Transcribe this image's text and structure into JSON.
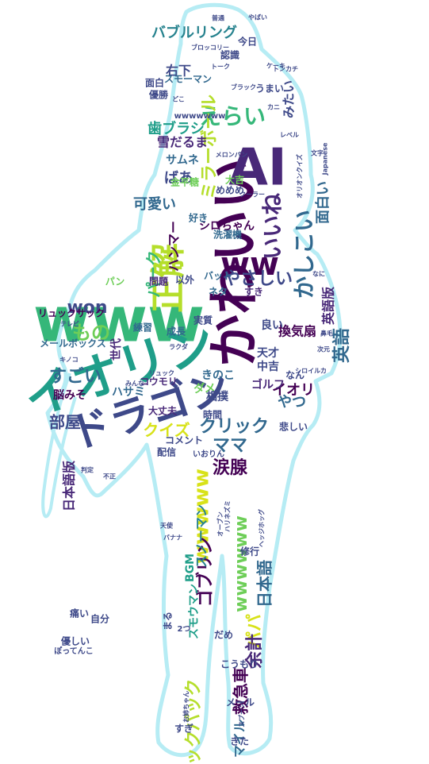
{
  "palette": {
    "outline": "#b6ecf4",
    "background": "#ffffff",
    "colors": [
      "#440154",
      "#482878",
      "#3e4989",
      "#31688e",
      "#26828e",
      "#1f9e89",
      "#35b779",
      "#6ece58",
      "#b5de2b",
      "#d8e219"
    ]
  },
  "words": [
    {
      "text": "www",
      "size": 78,
      "color": "#35b779"
    },
    {
      "text": "イオリン",
      "size": 62,
      "color": "#1f9e89"
    },
    {
      "text": "かわいい",
      "size": 66,
      "color": "#440154"
    },
    {
      "text": "AI",
      "size": 64,
      "color": "#482878"
    },
    {
      "text": "ドラゴン",
      "size": 52,
      "color": "#3e4989"
    },
    {
      "text": "正解",
      "size": 44,
      "color": "#b5de2b"
    },
    {
      "text": "ww",
      "size": 40,
      "color": "#440154"
    },
    {
      "text": "えらい",
      "size": 28,
      "color": "#35b779"
    },
    {
      "text": "かしこい",
      "size": 28,
      "color": "#31688e"
    },
    {
      "text": "いいね",
      "size": 28,
      "color": "#482878"
    },
    {
      "text": "ミラーボール",
      "size": 22,
      "color": "#b5de2b"
    },
    {
      "text": "バブルリング",
      "size": 18,
      "color": "#26828e"
    },
    {
      "text": "面白い",
      "size": 18,
      "color": "#31688e"
    },
    {
      "text": "やさしい",
      "size": 22,
      "color": "#3e4989"
    },
    {
      "text": "wwwww",
      "size": 26,
      "color": "#d8e219"
    },
    {
      "text": "wwwwww",
      "size": 22,
      "color": "#6ece58"
    },
    {
      "text": "クリック",
      "size": 22,
      "color": "#31688e"
    },
    {
      "text": "ママ",
      "size": 22,
      "color": "#31688e"
    },
    {
      "text": "涙腺",
      "size": 22,
      "color": "#440154"
    },
    {
      "text": "もの",
      "size": 24,
      "color": "#6ece58"
    },
    {
      "text": "won",
      "size": 22,
      "color": "#3e4989"
    },
    {
      "text": "すごい",
      "size": 22,
      "color": "#31688e"
    },
    {
      "text": "部屋",
      "size": 20,
      "color": "#3e4989"
    },
    {
      "text": "クイズ",
      "size": 20,
      "color": "#d8e219"
    },
    {
      "text": "パーク",
      "size": 20,
      "color": "#35b779"
    },
    {
      "text": "ハンマー",
      "size": 16,
      "color": "#440154"
    },
    {
      "text": "可愛い",
      "size": 18,
      "color": "#31688e"
    },
    {
      "text": "歯ブラシ",
      "size": 18,
      "color": "#1f9e89"
    },
    {
      "text": "雪だるま",
      "size": 16,
      "color": "#482878"
    },
    {
      "text": "ばあ",
      "size": 18,
      "color": "#3e4989"
    },
    {
      "text": "サムネ",
      "size": 14,
      "color": "#31688e"
    },
    {
      "text": "右下",
      "size": 16,
      "color": "#3e4989"
    },
    {
      "text": "みたい",
      "size": 16,
      "color": "#3e4989"
    },
    {
      "text": "英語版",
      "size": 16,
      "color": "#482878"
    },
    {
      "text": "英語",
      "size": 22,
      "color": "#31688e"
    },
    {
      "text": "換気扇",
      "size": 16,
      "color": "#440154"
    },
    {
      "text": "イオリ",
      "size": 18,
      "color": "#440154"
    },
    {
      "text": "やつ",
      "size": 18,
      "color": "#31688e"
    },
    {
      "text": "ゴルフ",
      "size": 14,
      "color": "#482878"
    },
    {
      "text": "ダメ",
      "size": 14,
      "color": "#6ece58"
    },
    {
      "text": "パパ",
      "size": 22,
      "color": "#d8e219"
    },
    {
      "text": "日本語",
      "size": 20,
      "color": "#31688e"
    },
    {
      "text": "ゴブリン",
      "size": 22,
      "color": "#440154"
    },
    {
      "text": "余計",
      "size": 22,
      "color": "#482878"
    },
    {
      "text": "バックパック",
      "size": 22,
      "color": "#b5de2b"
    },
    {
      "text": "救急車",
      "size": 20,
      "color": "#440154"
    },
    {
      "text": "マイル",
      "size": 16,
      "color": "#31688e"
    },
    {
      "text": "日本語版",
      "size": 16,
      "color": "#482878"
    },
    {
      "text": "BGM",
      "size": 14,
      "color": "#1f9e89"
    },
    {
      "text": "スノーマン",
      "size": 16,
      "color": "#26828e"
    },
    {
      "text": "スモウマン",
      "size": 14,
      "color": "#1f9e89"
    },
    {
      "text": "メールボックス",
      "size": 12,
      "color": "#31688e"
    },
    {
      "text": "リュックサック",
      "size": 12,
      "color": "#440154"
    },
    {
      "text": "ハサミ",
      "size": 14,
      "color": "#31688e"
    },
    {
      "text": "脳みそ",
      "size": 14,
      "color": "#440154"
    },
    {
      "text": "世代",
      "size": 14,
      "color": "#482878"
    },
    {
      "text": "練習",
      "size": 12,
      "color": "#31688e"
    },
    {
      "text": "成長",
      "size": 12,
      "color": "#31688e"
    },
    {
      "text": "実質",
      "size": 12,
      "color": "#3e4989"
    },
    {
      "text": "コウモリ",
      "size": 12,
      "color": "#482878"
    },
    {
      "text": "大丈夫",
      "size": 12,
      "color": "#482878"
    },
    {
      "text": "コメント",
      "size": 12,
      "color": "#3e4989"
    },
    {
      "text": "時間",
      "size": 12,
      "color": "#3e4989"
    },
    {
      "text": "相撲",
      "size": 14,
      "color": "#3e4989"
    },
    {
      "text": "天才",
      "size": 14,
      "color": "#3e4989"
    },
    {
      "text": "中吉",
      "size": 14,
      "color": "#3e4989"
    },
    {
      "text": "良い",
      "size": 14,
      "color": "#3e4989"
    },
    {
      "text": "なん",
      "size": 12,
      "color": "#3e4989"
    },
    {
      "text": "悲しい",
      "size": 12,
      "color": "#3e4989"
    },
    {
      "text": "きのこ",
      "size": 14,
      "color": "#31688e"
    },
    {
      "text": "シロちゃん",
      "size": 14,
      "color": "#440154"
    },
    {
      "text": "洗濯機",
      "size": 12,
      "color": "#31688e"
    },
    {
      "text": "バット",
      "size": 12,
      "color": "#31688e"
    },
    {
      "text": "ネタ",
      "size": 12,
      "color": "#31688e"
    },
    {
      "text": "すき",
      "size": 12,
      "color": "#482878"
    },
    {
      "text": "パン",
      "size": 12,
      "color": "#6ece58"
    },
    {
      "text": "問題",
      "size": 12,
      "color": "#482878"
    },
    {
      "text": "以外",
      "size": 12,
      "color": "#3e4989"
    },
    {
      "text": "好き",
      "size": 12,
      "color": "#31688e"
    },
    {
      "text": "金平糖",
      "size": 12,
      "color": "#6ece58"
    },
    {
      "text": "めめめ",
      "size": 12,
      "color": "#3e4989"
    },
    {
      "text": "大吉",
      "size": 12,
      "color": "#6ece58"
    },
    {
      "text": "スモーマン",
      "size": 12,
      "color": "#31688e"
    },
    {
      "text": "面白",
      "size": 12,
      "color": "#3e4989"
    },
    {
      "text": "優勝",
      "size": 12,
      "color": "#3e4989"
    },
    {
      "text": "今日",
      "size": 12,
      "color": "#3e4989"
    },
    {
      "text": "認識",
      "size": 12,
      "color": "#3e4989"
    },
    {
      "text": "うまい",
      "size": 12,
      "color": "#3e4989"
    },
    {
      "text": "まる",
      "size": 12,
      "color": "#3e4989"
    },
    {
      "text": "だめ",
      "size": 12,
      "color": "#3e4989"
    },
    {
      "text": "こうもり",
      "size": 12,
      "color": "#3e4989"
    },
    {
      "text": "痛い",
      "size": 12,
      "color": "#3e4989"
    },
    {
      "text": "自分",
      "size": 12,
      "color": "#3e4989"
    },
    {
      "text": "優しい",
      "size": 12,
      "color": "#3e4989"
    },
    {
      "text": "ぽってんこ",
      "size": 10,
      "color": "#3e4989"
    },
    {
      "text": "修行",
      "size": 12,
      "color": "#3e4989"
    },
    {
      "text": "すぎ",
      "size": 12,
      "color": "#3e4989"
    },
    {
      "text": "きた",
      "size": 12,
      "color": "#3e4989"
    },
    {
      "text": "メール",
      "size": 12,
      "color": "#3e4989"
    },
    {
      "text": "いおりん",
      "size": 10,
      "color": "#3e4989"
    },
    {
      "text": "配信",
      "size": 12,
      "color": "#3e4989"
    },
    {
      "text": "2つ",
      "size": 10,
      "color": "#3e4989"
    },
    {
      "text": "wwwwwww",
      "size": 10,
      "color": "#3e4989"
    },
    {
      "text": "ブロッコリー",
      "size": 8,
      "color": "#3e4989"
    },
    {
      "text": "トーク",
      "size": 8,
      "color": "#3e4989"
    },
    {
      "text": "メロンパン",
      "size": 8,
      "color": "#3e4989"
    },
    {
      "text": "クーラー",
      "size": 8,
      "color": "#3e4989"
    },
    {
      "text": "オリオンクイズ",
      "size": 8,
      "color": "#3e4989"
    },
    {
      "text": "ブラック",
      "size": 8,
      "color": "#3e4989"
    },
    {
      "text": "トンカチ",
      "size": 8,
      "color": "#3e4989"
    },
    {
      "text": "ケーキ",
      "size": 8,
      "color": "#3e4989"
    },
    {
      "text": "ラクダ",
      "size": 8,
      "color": "#3e4989"
    },
    {
      "text": "リュック",
      "size": 8,
      "color": "#3e4989"
    },
    {
      "text": "オーブン",
      "size": 8,
      "color": "#3e4989"
    },
    {
      "text": "ハリネズミ",
      "size": 8,
      "color": "#3e4989"
    },
    {
      "text": "ヘッジホッグ",
      "size": 8,
      "color": "#3e4989"
    },
    {
      "text": "テレビ",
      "size": 8,
      "color": "#3e4989"
    },
    {
      "text": "キノコ",
      "size": 8,
      "color": "#3e4989"
    },
    {
      "text": "シロイルカ",
      "size": 8,
      "color": "#3e4989"
    },
    {
      "text": "次元",
      "size": 8,
      "color": "#3e4989"
    },
    {
      "text": "みんな",
      "size": 8,
      "color": "#3e4989"
    },
    {
      "text": "バナナ",
      "size": 8,
      "color": "#3e4989"
    },
    {
      "text": "天使",
      "size": 8,
      "color": "#3e4989"
    },
    {
      "text": "お姉ちゃん",
      "size": 8,
      "color": "#3e4989"
    },
    {
      "text": "スプーン",
      "size": 8,
      "color": "#3e4989"
    },
    {
      "text": "鼻毛",
      "size": 8,
      "color": "#3e4989"
    },
    {
      "text": "文字",
      "size": 8,
      "color": "#3e4989"
    },
    {
      "text": "レベル",
      "size": 8,
      "color": "#3e4989"
    },
    {
      "text": "Japanese",
      "size": 8,
      "color": "#3e4989"
    },
    {
      "text": "普通",
      "size": 8,
      "color": "#3e4989"
    },
    {
      "text": "やばい",
      "size": 8,
      "color": "#3e4989"
    },
    {
      "text": "カニ",
      "size": 8,
      "color": "#3e4989"
    },
    {
      "text": "どこ",
      "size": 8,
      "color": "#3e4989"
    },
    {
      "text": "なに",
      "size": 8,
      "color": "#3e4989"
    },
    {
      "text": "判定",
      "size": 8,
      "color": "#3e4989"
    },
    {
      "text": "不正",
      "size": 8,
      "color": "#3e4989"
    }
  ]
}
